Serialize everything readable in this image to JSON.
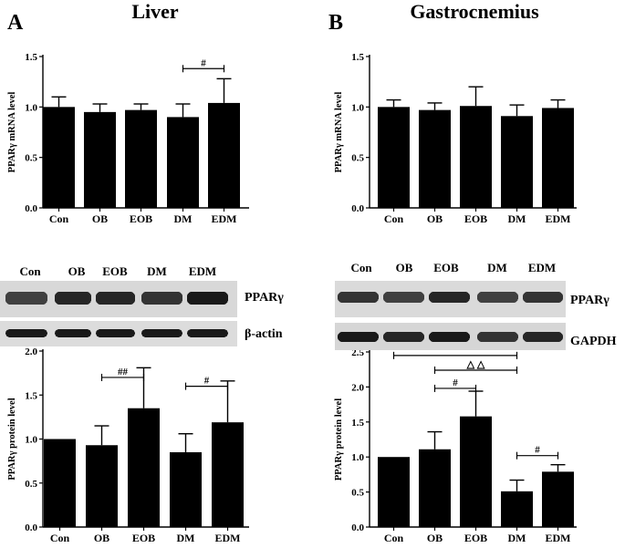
{
  "panels": {
    "A": {
      "letter": "A",
      "title": "Liver"
    },
    "B": {
      "letter": "B",
      "title": "Gastrocnemius"
    }
  },
  "blots": {
    "A": {
      "lanes": [
        "Con",
        "OB",
        "EOB",
        "DM",
        "EDM"
      ],
      "rows": [
        {
          "label": "PPARγ"
        },
        {
          "label": "β-actin"
        }
      ]
    },
    "B": {
      "lanes": [
        "Con",
        "OB",
        "EOB",
        "DM",
        "EDM"
      ],
      "rows": [
        {
          "label": "PPARγ"
        },
        {
          "label": "GAPDH"
        }
      ]
    }
  },
  "chart_data": [
    {
      "id": "A1",
      "type": "bar",
      "categories": [
        "Con",
        "OB",
        "EOB",
        "DM",
        "EDM"
      ],
      "values": [
        1.0,
        0.95,
        0.97,
        0.9,
        1.04
      ],
      "errors": [
        0.1,
        0.08,
        0.06,
        0.13,
        0.24
      ],
      "ylabel": "PPARγ mRNA level",
      "yticks": [
        "0.0",
        "0.5",
        "1.0",
        "1.5"
      ],
      "ylim": [
        0,
        1.5
      ],
      "annotations": [
        {
          "from": 3,
          "to": 4,
          "y": 1.38,
          "text": "#"
        }
      ]
    },
    {
      "id": "B1",
      "type": "bar",
      "categories": [
        "Con",
        "OB",
        "EOB",
        "DM",
        "EDM"
      ],
      "values": [
        1.0,
        0.97,
        1.01,
        0.91,
        0.99
      ],
      "errors": [
        0.07,
        0.07,
        0.19,
        0.11,
        0.08
      ],
      "ylabel": "PPARγ mRNA level",
      "yticks": [
        "0.0",
        "0.5",
        "1.0",
        "1.5"
      ],
      "ylim": [
        0,
        1.5
      ],
      "annotations": []
    },
    {
      "id": "A2",
      "type": "bar",
      "categories": [
        "Con",
        "OB",
        "EOB",
        "DM",
        "EDM"
      ],
      "values": [
        1.0,
        0.93,
        1.35,
        0.85,
        1.19
      ],
      "errors": [
        0.0,
        0.22,
        0.46,
        0.21,
        0.47
      ],
      "ylabel": "PPARγ protein level",
      "yticks": [
        "0.0",
        "0.5",
        "1.0",
        "1.5",
        "2.0"
      ],
      "ylim": [
        0,
        2.0
      ],
      "annotations": [
        {
          "from": 1,
          "to": 2,
          "y": 1.7,
          "text": "##"
        },
        {
          "from": 3,
          "to": 4,
          "y": 1.6,
          "text": "#"
        }
      ]
    },
    {
      "id": "B2",
      "type": "bar",
      "categories": [
        "Con",
        "OB",
        "EOB",
        "DM",
        "EDM"
      ],
      "values": [
        1.0,
        1.11,
        1.58,
        0.51,
        0.79
      ],
      "errors": [
        0.0,
        0.25,
        0.36,
        0.16,
        0.1
      ],
      "ylabel": "PPARγ protein level",
      "yticks": [
        "0.0",
        "0.5",
        "1.0",
        "1.5",
        "2.0",
        "2.5"
      ],
      "ylim": [
        0,
        2.5
      ],
      "annotations": [
        {
          "from": 0,
          "to": 3,
          "y": 2.45,
          "text": "**"
        },
        {
          "from": 1,
          "to": 3,
          "y": 2.24,
          "text": "△ △"
        },
        {
          "from": 1,
          "to": 2,
          "y": 1.98,
          "text": "#"
        },
        {
          "from": 3,
          "to": 4,
          "y": 1.02,
          "text": "#"
        }
      ]
    }
  ]
}
